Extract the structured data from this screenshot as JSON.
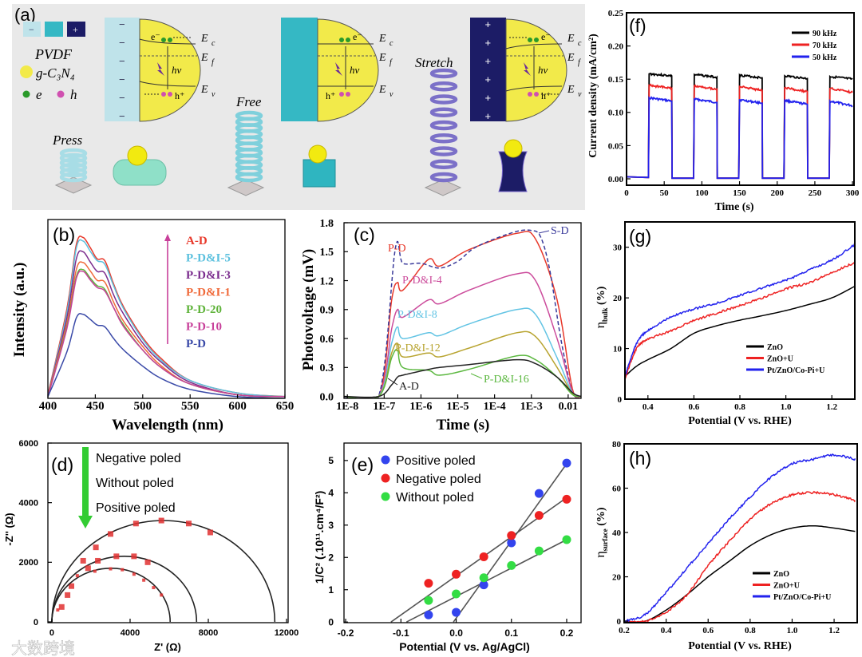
{
  "watermark": "大数跨境",
  "panel_a": {
    "label": "(a)",
    "legend": {
      "pvdf": "PVDF",
      "gcn": "g-C₃N₄",
      "electron": "e",
      "hole": "h",
      "minus": "−",
      "plus": "+"
    },
    "states": [
      "Press",
      "Free",
      "Stretch"
    ],
    "band": {
      "E": "E",
      "c": "c",
      "f": "f",
      "v": "v",
      "photon": "hv",
      "electron": "e⁻",
      "hole": "h⁺"
    },
    "colors": {
      "pvdf_negative": "#bfe3ea",
      "pvdf_neutral": "#35b8c4",
      "pvdf_positive": "#1c1c66",
      "gcn": "#f2ea4a",
      "electron": "#2a9a2a",
      "hole": "#d050b0"
    }
  },
  "chart_data": [
    {
      "id": "b",
      "panel_label": "(b)",
      "type": "line",
      "xlabel": "Wavelength (nm)",
      "ylabel": "Intensity (a.u.)",
      "xlim": [
        400,
        650
      ],
      "ylim": [
        0,
        100
      ],
      "xticks": [
        400,
        450,
        500,
        550,
        600,
        650
      ],
      "xtick_labels": [
        "400",
        "450",
        "500",
        "550",
        "600",
        "650"
      ],
      "yticks": [],
      "ytick_labels": [],
      "legend_placement": "top-right",
      "x": [
        400,
        420,
        430,
        437,
        445,
        452,
        460,
        470,
        480,
        500,
        520,
        550,
        600,
        650
      ],
      "series": [
        {
          "name": "A-D",
          "color": "#e8392b",
          "y": [
            2,
            50,
            86,
            90,
            84,
            78,
            77,
            63,
            51,
            34,
            22,
            10,
            3,
            1
          ]
        },
        {
          "name": "P-D&I-5",
          "color": "#5bc0de",
          "y": [
            2,
            48,
            84,
            88,
            82,
            77,
            75,
            62,
            50,
            33,
            21,
            10,
            3,
            1
          ]
        },
        {
          "name": "P-D&I-3",
          "color": "#7b2d8e",
          "y": [
            2,
            45,
            78,
            82,
            76,
            71,
            70,
            57,
            47,
            31,
            20,
            9,
            2,
            1
          ]
        },
        {
          "name": "P-D&I-1",
          "color": "#f06a3a",
          "y": [
            2,
            42,
            72,
            76,
            71,
            66,
            65,
            53,
            43,
            29,
            18,
            8,
            2,
            1
          ]
        },
        {
          "name": "P-D-20",
          "color": "#5fb33a",
          "y": [
            1,
            40,
            68,
            72,
            67,
            63,
            61,
            50,
            41,
            27,
            17,
            8,
            2,
            1
          ]
        },
        {
          "name": "P-D-10",
          "color": "#c8409a",
          "y": [
            1,
            39,
            67,
            71,
            66,
            62,
            60,
            50,
            40,
            27,
            17,
            8,
            2,
            1
          ]
        },
        {
          "name": "P-D",
          "color": "#3a4aa8",
          "y": [
            1,
            26,
            45,
            47,
            44,
            41,
            40,
            33,
            27,
            18,
            11,
            5,
            1,
            0
          ]
        }
      ]
    },
    {
      "id": "c",
      "panel_label": "(c)",
      "type": "line",
      "x_scale": "log",
      "xlabel": "Time (s)",
      "ylabel": "Photovoltage (mV)",
      "xlim": [
        8.1e-09,
        0.0224
      ],
      "ylim": [
        -0.02,
        1.8
      ],
      "xticks": [
        1e-08,
        1e-07,
        1e-06,
        1e-05,
        0.0001,
        0.001,
        0.01
      ],
      "xtick_labels": [
        "1E-8",
        "1E-7",
        "1E-6",
        "1E-5",
        "1E-4",
        "1E-3",
        "0.01"
      ],
      "yticks": [
        0,
        0.3,
        0.6,
        0.9,
        1.2,
        1.5,
        1.8
      ],
      "ytick_labels": [
        "0.0",
        "0.3",
        "0.6",
        "0.9",
        "1.2",
        "1.5",
        "1.8"
      ],
      "legend_placement": "inline annotations",
      "x": [
        7.9e-09,
        7.1e-08,
        1.6e-07,
        2.3e-07,
        3.2e-07,
        1.6e-06,
        3.2e-06,
        2e-05,
        0.0004,
        0.0013,
        0.005,
        0.013,
        0.022
      ],
      "series": [
        {
          "name": "P-D",
          "color": "#e8392b",
          "y": [
            0,
            0,
            1.0,
            1.18,
            1.1,
            1.42,
            1.35,
            1.52,
            1.69,
            1.63,
            1.0,
            0.08,
            0
          ]
        },
        {
          "name": "S-D",
          "color": "#3b3b9b",
          "dashed": true,
          "x": [
            7.9e-09,
            7.1e-08,
            2e-07,
            3.2e-07,
            1e-06,
            3.2e-06,
            1e-05,
            3.2e-05,
            0.00032,
            0.001,
            0.0018,
            0.0032,
            0.0063,
            0.013,
            0.022
          ],
          "y": [
            0,
            0,
            1.53,
            1.38,
            1.38,
            1.33,
            1.4,
            1.55,
            1.7,
            1.72,
            1.65,
            1.3,
            0.6,
            0.05,
            0
          ]
        },
        {
          "name": "P-D&I-4",
          "color": "#cc4c9c",
          "y": [
            0,
            0,
            0.7,
            0.9,
            0.82,
            1.0,
            0.96,
            1.1,
            1.27,
            1.2,
            0.6,
            0.05,
            0
          ]
        },
        {
          "name": "P-D&I-8",
          "color": "#63c4e4",
          "y": [
            0,
            0,
            0.55,
            0.72,
            0.6,
            0.66,
            0.63,
            0.75,
            0.9,
            0.85,
            0.4,
            0.04,
            0
          ]
        },
        {
          "name": "P-D&I-12",
          "color": "#b8a430",
          "y": [
            0,
            0,
            0.45,
            0.55,
            0.41,
            0.45,
            0.41,
            0.5,
            0.66,
            0.62,
            0.3,
            0.03,
            0
          ]
        },
        {
          "name": "P-D&I-16",
          "color": "#5cb840",
          "y": [
            0,
            0,
            0.4,
            0.48,
            0.3,
            0.27,
            0.22,
            0.28,
            0.42,
            0.38,
            0.2,
            0.02,
            0
          ]
        },
        {
          "name": "A-D",
          "color": "#222222",
          "y": [
            0,
            0,
            0.12,
            0.2,
            0.22,
            0.28,
            0.3,
            0.33,
            0.38,
            0.34,
            0.2,
            0.04,
            0
          ]
        }
      ]
    },
    {
      "id": "d",
      "panel_label": "(d)",
      "type": "scatter",
      "xlabel": "Z' (Ω)",
      "ylabel": "-Z'' (Ω)",
      "xlim": [
        -204,
        12082
      ],
      "ylim": [
        -27,
        6000
      ],
      "xticks": [
        0,
        4000,
        8000,
        12000
      ],
      "xtick_labels": [
        "0",
        "4000",
        "8000",
        "12000"
      ],
      "yticks": [
        0,
        2000,
        4000,
        6000
      ],
      "ytick_labels": [
        "0",
        "2000",
        "4000",
        "6000"
      ],
      "legend_placement": "top-left",
      "legend_arrow_color": "#33cc33",
      "series": [
        {
          "name": "Negative poled",
          "color": "#e03030",
          "marker": "square",
          "fit": {
            "x_start": 0,
            "x_end": 11400,
            "peak": 3400
          },
          "points": [
            [
              500,
              500
            ],
            [
              1000,
              1200
            ],
            [
              1600,
              2050
            ],
            [
              2250,
              2500
            ],
            [
              3000,
              2950
            ],
            [
              4300,
              3300
            ],
            [
              5600,
              3400
            ],
            [
              7000,
              3300
            ],
            [
              8100,
              3000
            ]
          ]
        },
        {
          "name": "Without poled",
          "color": "#e03030",
          "marker": "square",
          "fit": {
            "x_start": 0,
            "x_end": 7400,
            "peak": 2200
          },
          "points": [
            [
              800,
              900
            ],
            [
              1850,
              1800
            ],
            [
              2350,
              2050
            ],
            [
              3300,
              2200
            ],
            [
              4200,
              2200
            ],
            [
              4900,
              2000
            ]
          ]
        },
        {
          "name": "Positive poled",
          "color": "#e03030",
          "marker": "small",
          "fit": {
            "x_start": 0,
            "x_end": 6050,
            "peak": 1800
          },
          "points": [
            [
              300,
              400
            ],
            [
              1300,
              1550
            ],
            [
              2200,
              1700
            ],
            [
              3000,
              1780
            ],
            [
              3600,
              1750
            ],
            [
              4200,
              1600
            ],
            [
              4700,
              1400
            ],
            [
              5200,
              1150
            ],
            [
              5600,
              900
            ]
          ]
        }
      ]
    },
    {
      "id": "e",
      "panel_label": "(e)",
      "type": "scatter",
      "xlabel": "Potential (V vs. Ag/AgCl)",
      "ylabel": "1/C² (.10¹¹.cm⁴/F²)",
      "xlim": [
        -0.203,
        0.226
      ],
      "ylim": [
        -0.02,
        5.54
      ],
      "xticks": [
        -0.2,
        -0.1,
        0,
        0.1,
        0.2
      ],
      "xtick_labels": [
        "-0.2",
        "-0.1",
        "0.0",
        "0.1",
        "0.2"
      ],
      "yticks": [
        0,
        1,
        2,
        3,
        4,
        5
      ],
      "ytick_labels": [
        "0",
        "1",
        "2",
        "3",
        "4",
        "5"
      ],
      "legend_placement": "top-left",
      "x": [
        -0.05,
        0,
        0.05,
        0.1,
        0.15,
        0.2
      ],
      "series": [
        {
          "name": "Positive poled",
          "color": "#3344ee",
          "y": [
            0.22,
            0.3,
            1.15,
            2.45,
            3.98,
            4.92
          ],
          "fit": {
            "x": [
              -0.005,
              0.2
            ],
            "y": [
              0,
              4.9
            ]
          }
        },
        {
          "name": "Negative poled",
          "color": "#ee2222",
          "y": [
            1.2,
            1.48,
            2.02,
            2.68,
            3.3,
            3.8
          ],
          "fit": {
            "x": [
              -0.118,
              0.2
            ],
            "y": [
              0,
              3.85
            ]
          }
        },
        {
          "name": "Without poled",
          "color": "#33dd44",
          "y": [
            0.67,
            0.87,
            1.37,
            1.75,
            2.2,
            2.55
          ],
          "fit": {
            "x": [
              -0.09,
              0.2
            ],
            "y": [
              0,
              2.55
            ]
          }
        }
      ]
    },
    {
      "id": "f",
      "panel_label": "(f)",
      "type": "line",
      "xlabel": "Time (s)",
      "ylabel": "Current density (mA/cm²)",
      "xlim": [
        0,
        302
      ],
      "ylim": [
        -0.0096,
        0.25
      ],
      "xticks": [
        0,
        50,
        100,
        150,
        200,
        250,
        300
      ],
      "xtick_labels": [
        "0",
        "50",
        "100",
        "150",
        "200",
        "250",
        "300"
      ],
      "yticks": [
        0,
        0.05,
        0.1,
        0.15,
        0.2,
        0.25
      ],
      "ytick_labels": [
        "0.00",
        "0.05",
        "0.10",
        "0.15",
        "0.20",
        "0.25"
      ],
      "legend_placement": "top-right",
      "x": [
        0,
        29,
        30,
        60,
        60.5,
        89,
        90,
        120,
        120.5,
        149,
        150,
        180,
        180.5,
        209,
        210,
        240,
        240.5,
        269,
        270,
        300
      ],
      "series": [
        {
          "name": "90 kHz",
          "color": "#000000",
          "y": [
            0.003,
            0.002,
            0.158,
            0.155,
            0.001,
            0.001,
            0.157,
            0.153,
            0.001,
            0.001,
            0.156,
            0.152,
            0.001,
            0.001,
            0.155,
            0.151,
            0.001,
            0.001,
            0.154,
            0.15
          ]
        },
        {
          "name": "70 kHz",
          "color": "#ee2222",
          "y": [
            0.003,
            0.002,
            0.141,
            0.136,
            0.001,
            0.001,
            0.14,
            0.135,
            0.001,
            0.001,
            0.139,
            0.133,
            0.001,
            0.001,
            0.137,
            0.131,
            0.001,
            0.001,
            0.136,
            0.13
          ]
        },
        {
          "name": "50 kHz",
          "color": "#2222ee",
          "y": [
            0.003,
            0.002,
            0.122,
            0.117,
            0.001,
            0.001,
            0.12,
            0.115,
            0.001,
            0.001,
            0.119,
            0.114,
            0.001,
            0.001,
            0.118,
            0.112,
            0.001,
            0.001,
            0.117,
            0.11
          ]
        }
      ]
    },
    {
      "id": "g",
      "panel_label": "(g)",
      "type": "line",
      "xlabel": "Potential (V vs. RHE)",
      "ylabel": "η",
      "ylabel_sub": "bulk",
      "ylabel_unit": " (%)",
      "xlim": [
        0.3,
        1.3
      ],
      "ylim": [
        0,
        35
      ],
      "xticks": [
        0.4,
        0.6,
        0.8,
        1.0,
        1.2
      ],
      "xtick_labels": [
        "0.4",
        "0.6",
        "0.8",
        "1.0",
        "1.2"
      ],
      "yticks": [
        0,
        10,
        20,
        30
      ],
      "ytick_labels": [
        "0",
        "10",
        "20",
        "30"
      ],
      "legend_placement": "bottom-right",
      "x": [
        0.3,
        0.35,
        0.4,
        0.5,
        0.6,
        0.7,
        0.8,
        0.9,
        1.0,
        1.1,
        1.2,
        1.3
      ],
      "series": [
        {
          "name": "ZnO",
          "color": "#000000",
          "y": [
            4.5,
            6.5,
            7.8,
            10,
            13,
            14.5,
            15.6,
            16.5,
            17.5,
            18.7,
            20,
            22.3
          ]
        },
        {
          "name": "ZnO+U",
          "color": "#ee2222",
          "noisy": true,
          "y": [
            4,
            10,
            11.8,
            13.5,
            15.5,
            17,
            18.5,
            20,
            21.8,
            23,
            25,
            27
          ]
        },
        {
          "name": "Pt/ZnO/Co-Pi+U",
          "color": "#2222ee",
          "noisy": true,
          "y": [
            4.5,
            11,
            13.5,
            16.2,
            17.8,
            19,
            20.5,
            22,
            23.5,
            25.5,
            27.5,
            30.5
          ]
        }
      ]
    },
    {
      "id": "h",
      "panel_label": "(h)",
      "type": "line",
      "xlabel": "Potential (V vs. RHE)",
      "ylabel": "η",
      "ylabel_sub": "surface",
      "ylabel_unit": " (%)",
      "xlim": [
        0.2,
        1.31
      ],
      "ylim": [
        -0.7,
        80
      ],
      "xticks": [
        0.2,
        0.4,
        0.6,
        0.8,
        1.0,
        1.2
      ],
      "xtick_labels": [
        "0.2",
        "0.4",
        "0.6",
        "0.8",
        "1.0",
        "1.2"
      ],
      "yticks": [
        0,
        20,
        40,
        60,
        80
      ],
      "ytick_labels": [
        "0",
        "20",
        "40",
        "60",
        "80"
      ],
      "legend_placement": "bottom-right",
      "x": [
        0.2,
        0.3,
        0.4,
        0.5,
        0.6,
        0.7,
        0.8,
        0.9,
        1.0,
        1.1,
        1.2,
        1.3
      ],
      "series": [
        {
          "name": "ZnO",
          "color": "#000000",
          "y": [
            0,
            0,
            5,
            12,
            20,
            27,
            34,
            39,
            42,
            43,
            42,
            40.5
          ]
        },
        {
          "name": "ZnO+U",
          "color": "#ee2222",
          "noisy": true,
          "y": [
            0,
            0,
            4,
            12,
            25,
            36,
            46,
            53,
            57,
            58,
            57,
            54.5
          ]
        },
        {
          "name": "Pt/ZnO/Co-Pi+U",
          "color": "#2222ee",
          "noisy": true,
          "y": [
            0,
            3,
            13,
            24,
            35,
            46,
            56,
            65,
            71,
            73,
            75,
            73
          ]
        }
      ]
    }
  ]
}
